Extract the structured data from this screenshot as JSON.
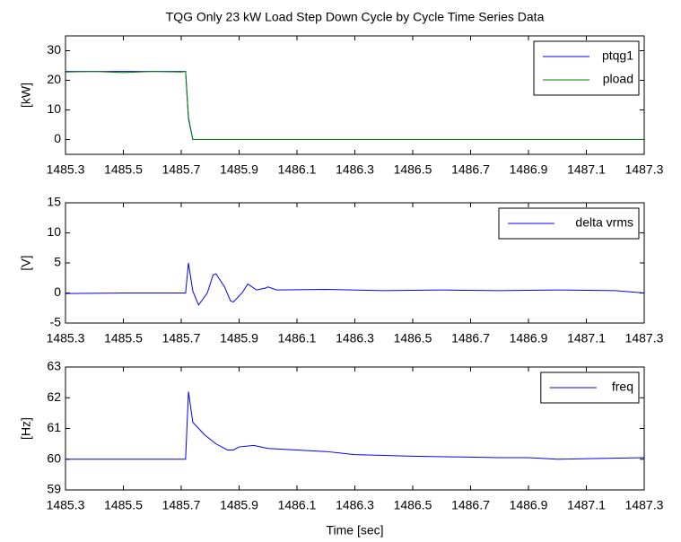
{
  "chart_data": [
    {
      "type": "line",
      "title": "TQG Only 23 kW Load Step Down Cycle by Cycle Time Series Data",
      "ylabel": "[kW]",
      "x": [
        1485.3,
        1485.4,
        1485.5,
        1485.6,
        1485.7,
        1485.715,
        1485.725,
        1485.74,
        1486.0,
        1486.5,
        1487.0,
        1487.3
      ],
      "series": [
        {
          "name": "ptqg1",
          "color": "#0000ff",
          "values": [
            23,
            23,
            23,
            23,
            23,
            23,
            7,
            0,
            0,
            0,
            0,
            0
          ]
        },
        {
          "name": "pload",
          "color": "#008000",
          "values": [
            22.8,
            23,
            22.6,
            23,
            22.8,
            23,
            7.5,
            0,
            0,
            0,
            0,
            0
          ]
        }
      ],
      "xlim": [
        1485.3,
        1487.3
      ],
      "xticks": [
        1485.3,
        1485.5,
        1485.7,
        1485.9,
        1486.1,
        1486.3,
        1486.5,
        1486.7,
        1486.9,
        1487.1,
        1487.3
      ],
      "ylim": [
        -5,
        35
      ],
      "yticks": [
        0,
        10,
        20,
        30
      ],
      "legend": "top-right"
    },
    {
      "type": "line",
      "ylabel": "[V]",
      "x": [
        1485.3,
        1485.5,
        1485.715,
        1485.725,
        1485.74,
        1485.76,
        1485.79,
        1485.81,
        1485.82,
        1485.85,
        1485.87,
        1485.88,
        1485.91,
        1485.93,
        1485.96,
        1485.99,
        1486.0,
        1486.03,
        1486.2,
        1486.4,
        1486.6,
        1486.8,
        1487.0,
        1487.2,
        1487.3
      ],
      "series": [
        {
          "name": "delta vrms",
          "color": "#0000ff",
          "values": [
            -0.1,
            0,
            0,
            5,
            0.3,
            -2,
            0,
            3,
            3.2,
            1,
            -1.3,
            -1.5,
            0,
            1.5,
            0.5,
            0.8,
            1,
            0.5,
            0.6,
            0.4,
            0.5,
            0.4,
            0.5,
            0.4,
            0
          ]
        }
      ],
      "xlim": [
        1485.3,
        1487.3
      ],
      "xticks": [
        1485.3,
        1485.5,
        1485.7,
        1485.9,
        1486.1,
        1486.3,
        1486.5,
        1486.7,
        1486.9,
        1487.1,
        1487.3
      ],
      "ylim": [
        -5,
        15
      ],
      "yticks": [
        -5,
        0,
        5,
        10,
        15
      ],
      "legend": "top-right"
    },
    {
      "type": "line",
      "ylabel": "[Hz]",
      "xlabel": "Time [sec]",
      "x": [
        1485.3,
        1485.5,
        1485.715,
        1485.725,
        1485.74,
        1485.78,
        1485.82,
        1485.86,
        1485.88,
        1485.9,
        1485.95,
        1486.0,
        1486.1,
        1486.2,
        1486.3,
        1486.5,
        1486.8,
        1486.9,
        1487.0,
        1487.3
      ],
      "series": [
        {
          "name": "freq",
          "color": "#0000ff",
          "values": [
            60,
            60,
            60,
            62.2,
            61.2,
            60.8,
            60.5,
            60.3,
            60.3,
            60.4,
            60.45,
            60.35,
            60.3,
            60.25,
            60.15,
            60.1,
            60.05,
            60.05,
            60,
            60.05
          ]
        }
      ],
      "xlim": [
        1485.3,
        1487.3
      ],
      "xticks": [
        1485.3,
        1485.5,
        1485.7,
        1485.9,
        1486.1,
        1486.3,
        1486.5,
        1486.7,
        1486.9,
        1487.1,
        1487.3
      ],
      "ylim": [
        59,
        63
      ],
      "yticks": [
        59,
        60,
        61,
        62,
        63
      ],
      "legend": "top-right"
    }
  ]
}
